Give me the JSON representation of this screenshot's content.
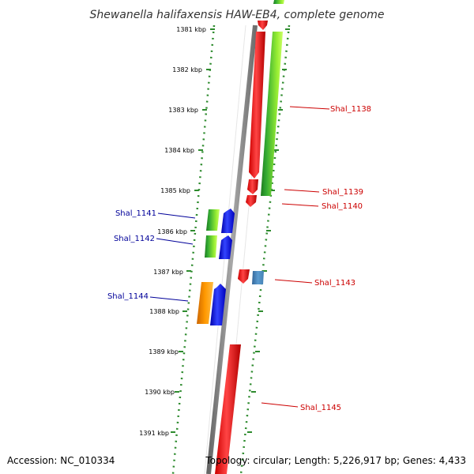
{
  "title": "Shewanella halifaxensis HAW-EB4, complete genome",
  "footer": {
    "accession": "Accession: NC_010334",
    "summary": "Topology: circular; Length: 5,226,917 bp; Genes: 4,433"
  },
  "ruler": {
    "ticks": [
      "1381 kbp",
      "1382 kbp",
      "1383 kbp",
      "1384 kbp",
      "1385 kbp",
      "1386 kbp",
      "1387 kbp",
      "1388 kbp",
      "1389 kbp",
      "1390 kbp",
      "1391 kbp"
    ]
  },
  "genes_right": [
    {
      "label": "Shal_1138",
      "color": "#cc0000"
    },
    {
      "label": "Shal_1139",
      "color": "#cc0000"
    },
    {
      "label": "Shal_1140",
      "color": "#cc0000"
    },
    {
      "label": "Shal_1143",
      "color": "#cc0000"
    },
    {
      "label": "Shal_1145",
      "color": "#cc0000"
    }
  ],
  "genes_left": [
    {
      "label": "Shal_1141",
      "color": "#000099"
    },
    {
      "label": "Shal_1142",
      "color": "#000099"
    },
    {
      "label": "Shal_1144",
      "color": "#000099"
    }
  ],
  "colors": {
    "backbone": "#808080",
    "cds_forward": "#ff0000",
    "cds_reverse": "#0000ff",
    "dotted_track": "#2e8b2e",
    "orange_feature": "#ff9900",
    "steelblue_feature": "#4682b4",
    "green_feature": "#33aa33",
    "lime_feature": "#99ee33"
  }
}
